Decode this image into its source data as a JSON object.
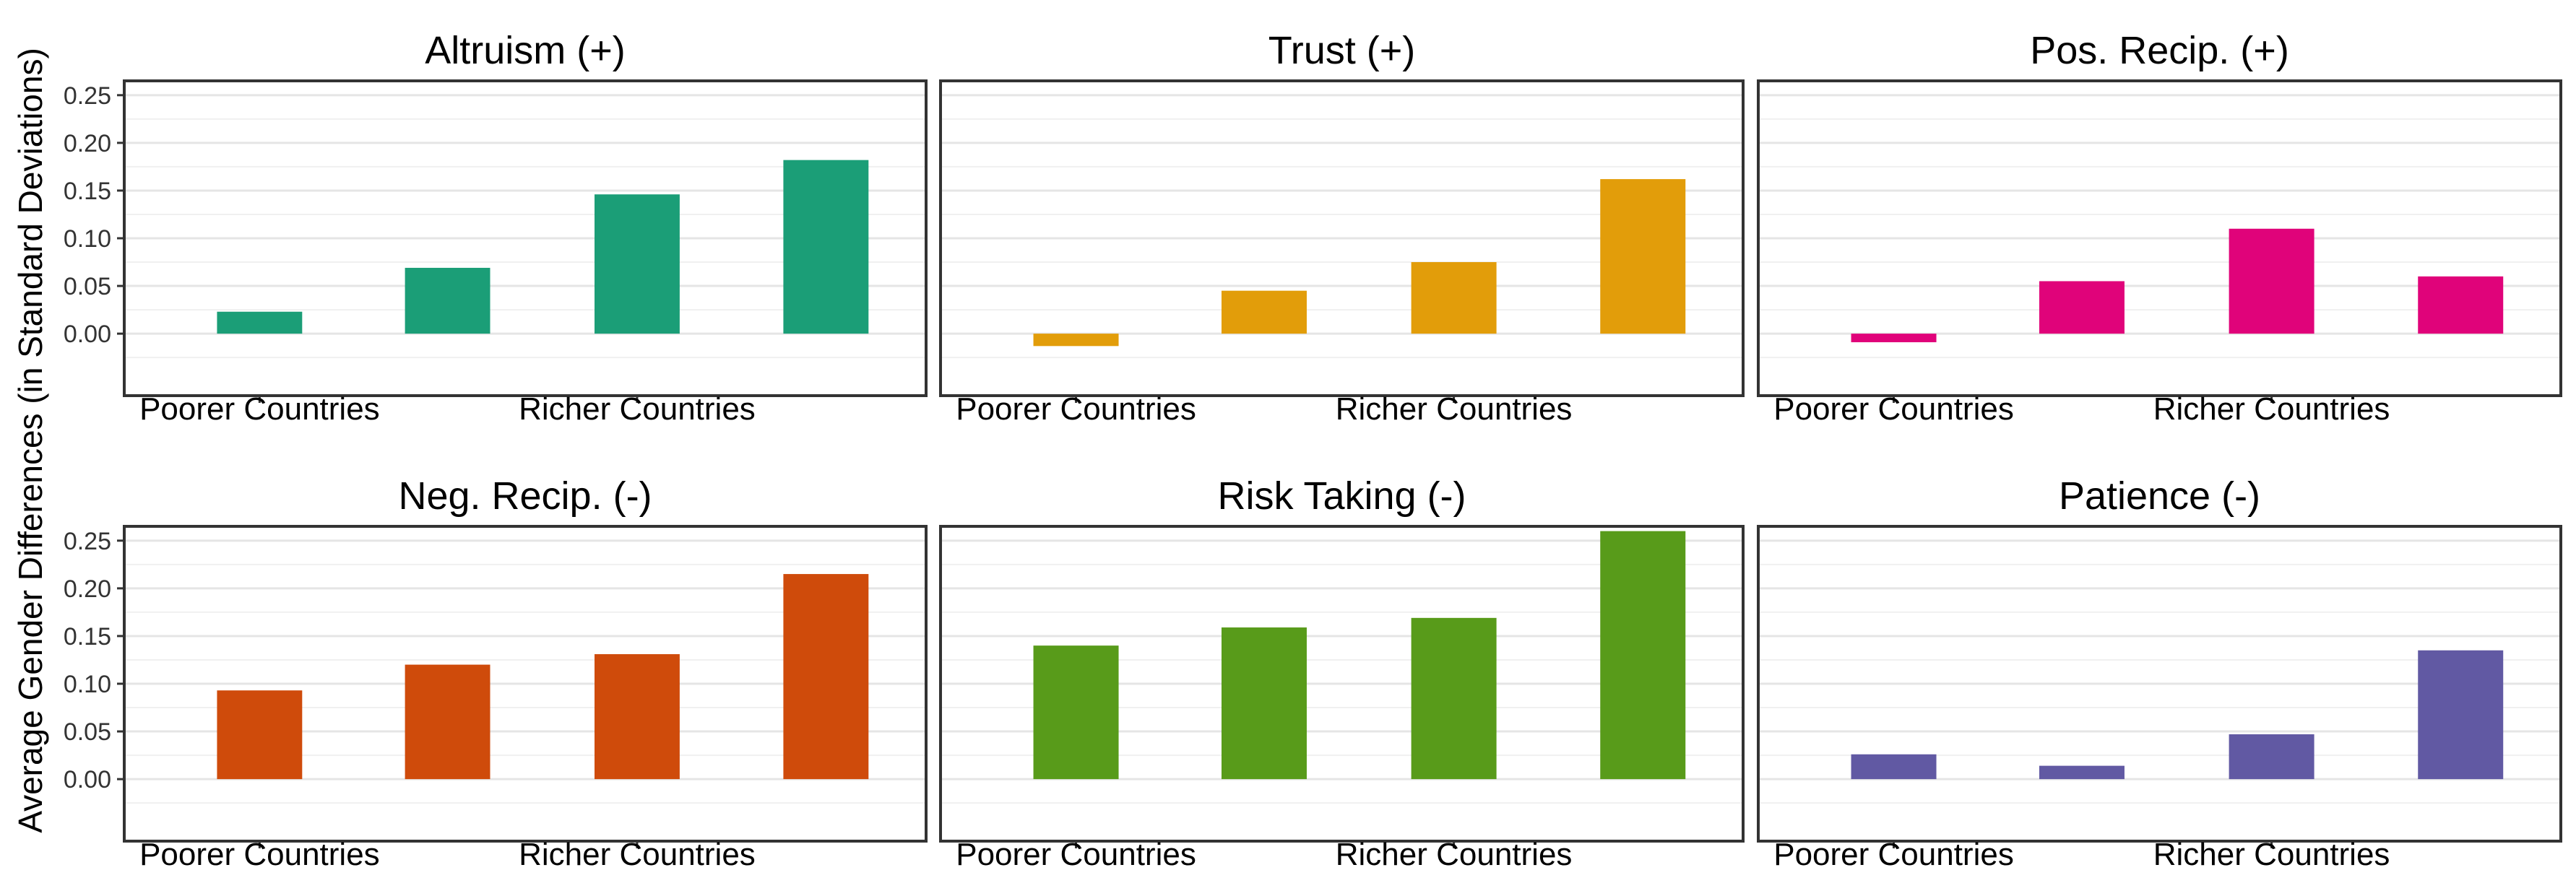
{
  "chart_data": {
    "type": "bar",
    "ylabel": "Average Gender Differences (in Standard Deviations)",
    "ylim": [
      -0.065,
      0.265
    ],
    "yticks": [
      0.0,
      0.05,
      0.1,
      0.15,
      0.2,
      0.25
    ],
    "ytick_labels": [
      "0.00",
      "0.05",
      "0.10",
      "0.15",
      "0.20",
      "0.25"
    ],
    "x_tick_labels": [
      "Poorer Countries",
      "Richer Countries"
    ],
    "grid": true,
    "panels": [
      {
        "title": "Altruism (+)",
        "color": "#1b9e77",
        "values": [
          0.023,
          0.069,
          0.146,
          0.182
        ]
      },
      {
        "title": "Trust (+)",
        "color": "#e29d0a",
        "values": [
          -0.013,
          0.045,
          0.075,
          0.162
        ]
      },
      {
        "title": "Pos. Recip. (+)",
        "color": "#e0037a",
        "values": [
          -0.009,
          0.055,
          0.11,
          0.06
        ]
      },
      {
        "title": "Neg. Recip. (-)",
        "color": "#cf4b0b",
        "values": [
          0.093,
          0.12,
          0.131,
          0.215
        ]
      },
      {
        "title": "Risk Taking (-)",
        "color": "#589b1a",
        "values": [
          0.14,
          0.159,
          0.169,
          0.26
        ]
      },
      {
        "title": "Patience (-)",
        "color": "#6159a3",
        "values": [
          0.026,
          0.014,
          0.047,
          0.135
        ]
      }
    ]
  }
}
